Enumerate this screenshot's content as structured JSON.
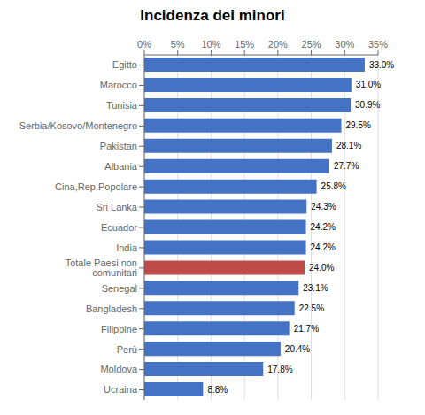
{
  "chart_data": {
    "type": "bar",
    "orientation": "horizontal",
    "title": "Incidenza dei minori",
    "categories": [
      "Ucraina",
      "Moldova",
      "Perù",
      "Filippine",
      "Bangladesh",
      "Senegal",
      "Totale Paesi non comunitari",
      "India",
      "Ecuador",
      "Sri Lanka",
      "Cina,Rep.Popolare",
      "Albania",
      "Pakistan",
      "Serbia/Kosovo/Montenegro",
      "Tunisia",
      "Marocco",
      "Egitto"
    ],
    "values": [
      8.8,
      17.8,
      20.4,
      21.7,
      22.5,
      23.1,
      24.0,
      24.2,
      24.2,
      24.3,
      25.8,
      27.7,
      28.1,
      29.5,
      30.9,
      31.0,
      33.0
    ],
    "value_labels": [
      "8.8%",
      "17.8%",
      "20.4%",
      "21.7%",
      "22.5%",
      "23.1%",
      "24.0%",
      "24.2%",
      "24.2%",
      "24.3%",
      "25.8%",
      "27.7%",
      "28.1%",
      "29.5%",
      "30.9%",
      "31.0%",
      "33.0%"
    ],
    "colors": [
      "#4472C4",
      "#4472C4",
      "#4472C4",
      "#4472C4",
      "#4472C4",
      "#4472C4",
      "#BE4B48",
      "#4472C4",
      "#4472C4",
      "#4472C4",
      "#4472C4",
      "#4472C4",
      "#4472C4",
      "#4472C4",
      "#4472C4",
      "#4472C4",
      "#4472C4"
    ],
    "xlim": [
      0,
      35
    ],
    "xticks": [
      {
        "value": 0,
        "label": "0%"
      },
      {
        "value": 5,
        "label": "5%"
      },
      {
        "value": 10,
        "label": "10%"
      },
      {
        "value": 15,
        "label": "15%"
      },
      {
        "value": 20,
        "label": "20%"
      },
      {
        "value": 25,
        "label": "25%"
      },
      {
        "value": 30,
        "label": "30%"
      },
      {
        "value": 35,
        "label": "35%"
      }
    ],
    "grid": true,
    "data_labels": true
  }
}
